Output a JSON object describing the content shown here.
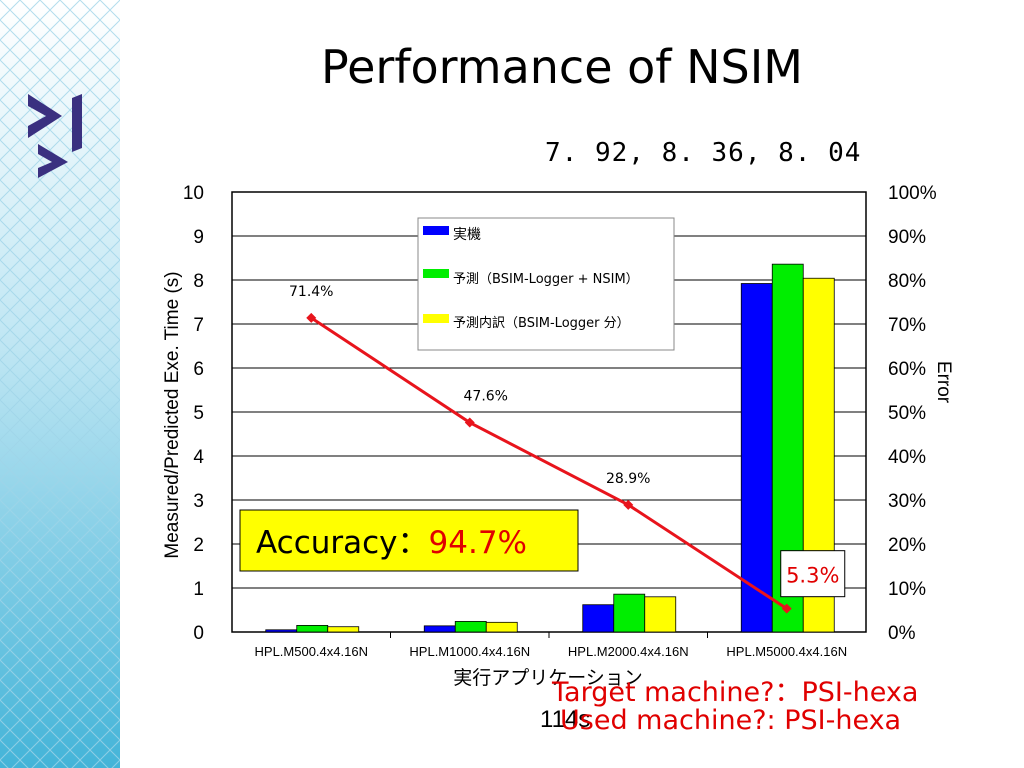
{
  "slide": {
    "title": "Performance of NSIM",
    "top_values": "7. 92, 8. 36, 8. 04",
    "bottom_left_text": "114s",
    "target_text": "Target machine?：PSI-hexa",
    "used_text": "Used machine?: PSI-hexa"
  },
  "colors": {
    "bar_actual": "#0000ff",
    "bar_predicted": "#00ee00",
    "bar_breakdown": "#ffff00",
    "error_line": "#e8141c",
    "accuracy_box": "#ffff00",
    "accuracy_value": "#e00000"
  },
  "chart_data": {
    "type": "bar",
    "xlabel": "実行アプリケーション",
    "ylabel": "Measured/Predicted Exe. Time (s)",
    "y2label": "Error",
    "ylim": [
      0,
      10
    ],
    "y2lim": [
      0,
      100
    ],
    "yticks": [
      "0",
      "1",
      "2",
      "3",
      "4",
      "5",
      "6",
      "7",
      "8",
      "9",
      "10"
    ],
    "y2ticks": [
      "0%",
      "10%",
      "20%",
      "30%",
      "40%",
      "50%",
      "60%",
      "70%",
      "80%",
      "90%",
      "100%"
    ],
    "grid": true,
    "legend_position": "top-center",
    "categories": [
      "HPL.M500.4x4.16N",
      "HPL.M1000.4x4.16N",
      "HPL.M2000.4x4.16N",
      "HPL.M5000.4x4.16N"
    ],
    "series": [
      {
        "name": "実機",
        "values": [
          0.05,
          0.14,
          0.62,
          7.92
        ]
      },
      {
        "name": "予測（BSIM-Logger + NSIM）",
        "values": [
          0.15,
          0.24,
          0.86,
          8.36
        ]
      },
      {
        "name": "予測内訳（BSIM-Logger 分）",
        "values": [
          0.12,
          0.22,
          0.8,
          8.04
        ]
      }
    ],
    "error_series": {
      "values": [
        71.4,
        47.6,
        28.9,
        5.3
      ],
      "labels": [
        "71.4%",
        "47.6%",
        "28.9%",
        "5.3%"
      ]
    },
    "accuracy_label": "Accuracy：",
    "accuracy_value": "94.7%"
  }
}
